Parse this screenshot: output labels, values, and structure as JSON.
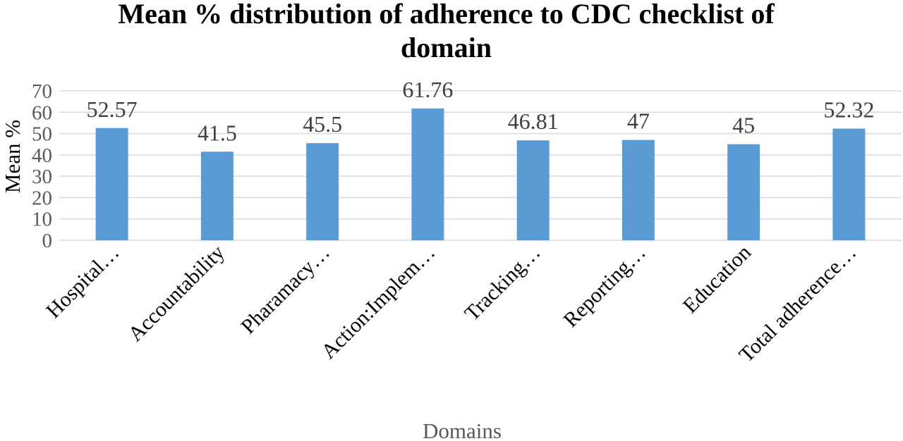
{
  "chart_data": {
    "type": "bar",
    "title_lines": [
      "Mean % distribution of adherence to CDC checklist of",
      "domain"
    ],
    "xlabel": "Domains",
    "ylabel": "Mean %",
    "ylim": [
      0,
      70
    ],
    "yticks": [
      0,
      10,
      20,
      30,
      40,
      50,
      60,
      70
    ],
    "categories": [
      "Hospital…",
      "Accountability",
      "Pharamacy…",
      "Action:Implem…",
      "Tracking…",
      "Reporting…",
      "Education",
      "Total adherence…"
    ],
    "values": [
      52.57,
      41.5,
      45.5,
      61.76,
      46.81,
      47,
      45,
      52.32
    ],
    "value_labels": [
      "52.57",
      "41.5",
      "45.5",
      "61.76",
      "46.81",
      "47",
      "45",
      "52.32"
    ],
    "grid": true,
    "legend": "none",
    "bar_color": "#5B9BD5",
    "grid_color": "#D9D9D9"
  }
}
